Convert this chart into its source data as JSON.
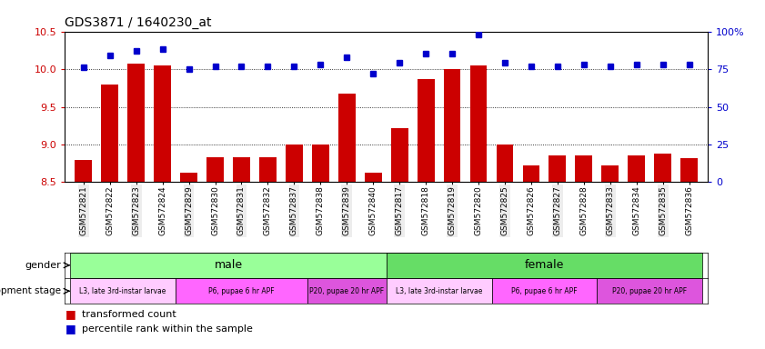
{
  "title": "GDS3871 / 1640230_at",
  "samples": [
    "GSM572821",
    "GSM572822",
    "GSM572823",
    "GSM572824",
    "GSM572829",
    "GSM572830",
    "GSM572831",
    "GSM572832",
    "GSM572837",
    "GSM572838",
    "GSM572839",
    "GSM572840",
    "GSM572817",
    "GSM572818",
    "GSM572819",
    "GSM572820",
    "GSM572825",
    "GSM572826",
    "GSM572827",
    "GSM572828",
    "GSM572833",
    "GSM572834",
    "GSM572835",
    "GSM572836"
  ],
  "bar_values": [
    8.8,
    9.8,
    10.07,
    10.05,
    8.63,
    8.83,
    8.83,
    8.83,
    9.0,
    9.0,
    9.67,
    8.63,
    9.22,
    9.87,
    10.0,
    10.05,
    9.0,
    8.72,
    8.85,
    8.85,
    8.72,
    8.85,
    8.88,
    8.82
  ],
  "percentile_values": [
    76,
    84,
    87,
    88,
    75,
    77,
    77,
    77,
    77,
    78,
    83,
    72,
    79,
    85,
    85,
    98,
    79,
    77,
    77,
    78,
    77,
    78,
    78,
    78
  ],
  "bar_color": "#cc0000",
  "dot_color": "#0000cc",
  "ylim_left": [
    8.5,
    10.5
  ],
  "ylim_right": [
    0,
    100
  ],
  "yticks_left": [
    8.5,
    9.0,
    9.5,
    10.0,
    10.5
  ],
  "yticks_right": [
    0,
    25,
    50,
    75,
    100
  ],
  "ytick_labels_right": [
    "0",
    "25",
    "50",
    "75",
    "100%"
  ],
  "grid_values": [
    9.0,
    9.5,
    10.0
  ],
  "gender_groups": [
    {
      "label": "male",
      "start": 0,
      "end": 12,
      "color": "#99ff99"
    },
    {
      "label": "female",
      "start": 12,
      "end": 24,
      "color": "#66dd66"
    }
  ],
  "stage_groups": [
    {
      "label": "L3, late 3rd-instar larvae",
      "start": 0,
      "end": 4,
      "color": "#ffccff"
    },
    {
      "label": "P6, pupae 6 hr APF",
      "start": 4,
      "end": 9,
      "color": "#ff66ff"
    },
    {
      "label": "P20, pupae 20 hr APF",
      "start": 9,
      "end": 12,
      "color": "#dd55dd"
    },
    {
      "label": "L3, late 3rd-instar larvae",
      "start": 12,
      "end": 16,
      "color": "#ffccff"
    },
    {
      "label": "P6, pupae 6 hr APF",
      "start": 16,
      "end": 20,
      "color": "#ff66ff"
    },
    {
      "label": "P20, pupae 20 hr APF",
      "start": 20,
      "end": 24,
      "color": "#dd55dd"
    }
  ],
  "legend_items": [
    {
      "label": "transformed count",
      "color": "#cc0000"
    },
    {
      "label": "percentile rank within the sample",
      "color": "#0000cc"
    }
  ],
  "bar_width": 0.65,
  "background_color": "#ffffff",
  "axis_color_left": "#cc0000",
  "axis_color_right": "#0000cc",
  "tick_bg_even": "#dddddd",
  "tick_bg_odd": "#ffffff"
}
